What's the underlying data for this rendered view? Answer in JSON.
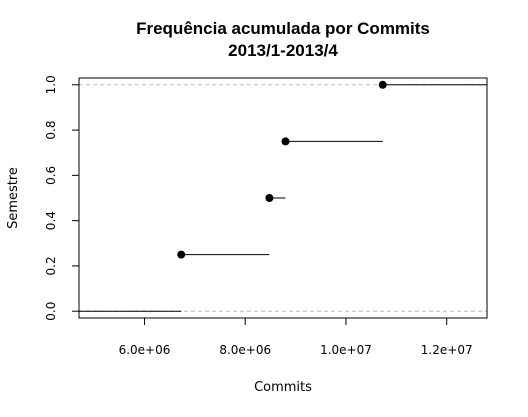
{
  "chart_data": {
    "type": "ecdf",
    "title": "Frequência acumulada por Commits",
    "subtitle": "2013/1-2013/4",
    "xlabel": "Commits",
    "ylabel": "Semestre",
    "xlim": [
      4700000,
      12800000
    ],
    "ylim": [
      -0.03,
      1.03
    ],
    "x_ticks": [
      {
        "value": 6000000,
        "label": "6.0e+06"
      },
      {
        "value": 8000000,
        "label": "8.0e+06"
      },
      {
        "value": 10000000,
        "label": "1.0e+07"
      },
      {
        "value": 12000000,
        "label": "1.2e+07"
      }
    ],
    "y_ticks": [
      {
        "value": 0.0,
        "label": "0.0"
      },
      {
        "value": 0.2,
        "label": "0.2"
      },
      {
        "value": 0.4,
        "label": "0.4"
      },
      {
        "value": 0.6,
        "label": "0.6"
      },
      {
        "value": 0.8,
        "label": "0.8"
      },
      {
        "value": 1.0,
        "label": "1.0"
      }
    ],
    "points": [
      {
        "x": 6730000,
        "y": 0.25
      },
      {
        "x": 8480000,
        "y": 0.5
      },
      {
        "x": 8800000,
        "y": 0.75
      },
      {
        "x": 10730000,
        "y": 1.0
      }
    ],
    "reference_lines_y": [
      0,
      1
    ],
    "colors": {
      "line": "#000000",
      "reference": "#bebebe"
    }
  }
}
